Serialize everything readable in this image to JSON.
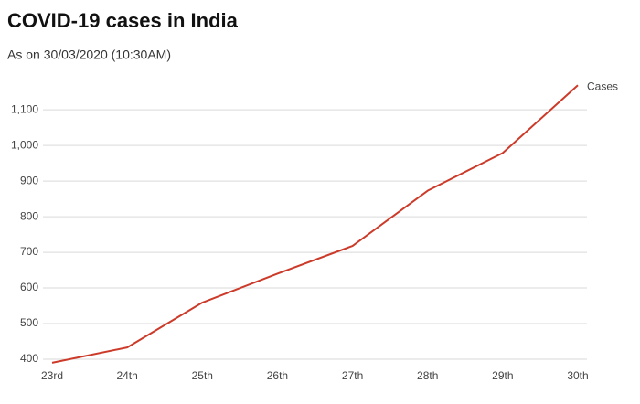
{
  "chart_data": {
    "type": "line",
    "title": "COVID-19 cases in India",
    "subtitle": "As on 30/03/2020 (10:30AM)",
    "categories": [
      "23rd",
      "24th",
      "25th",
      "26th",
      "27th",
      "28th",
      "29th",
      "30th"
    ],
    "series": [
      {
        "name": "Cases",
        "color": "#cc3b2a",
        "values": [
          390,
          433,
          559,
          640,
          718,
          873,
          979,
          1169
        ]
      }
    ],
    "ylim": [
      382,
      1180
    ],
    "yticks": [
      400,
      500,
      600,
      700,
      800,
      900,
      {
        "value": 1000,
        "label": "1,000"
      },
      {
        "value": 1100,
        "label": "1,100"
      }
    ],
    "grid": true
  }
}
